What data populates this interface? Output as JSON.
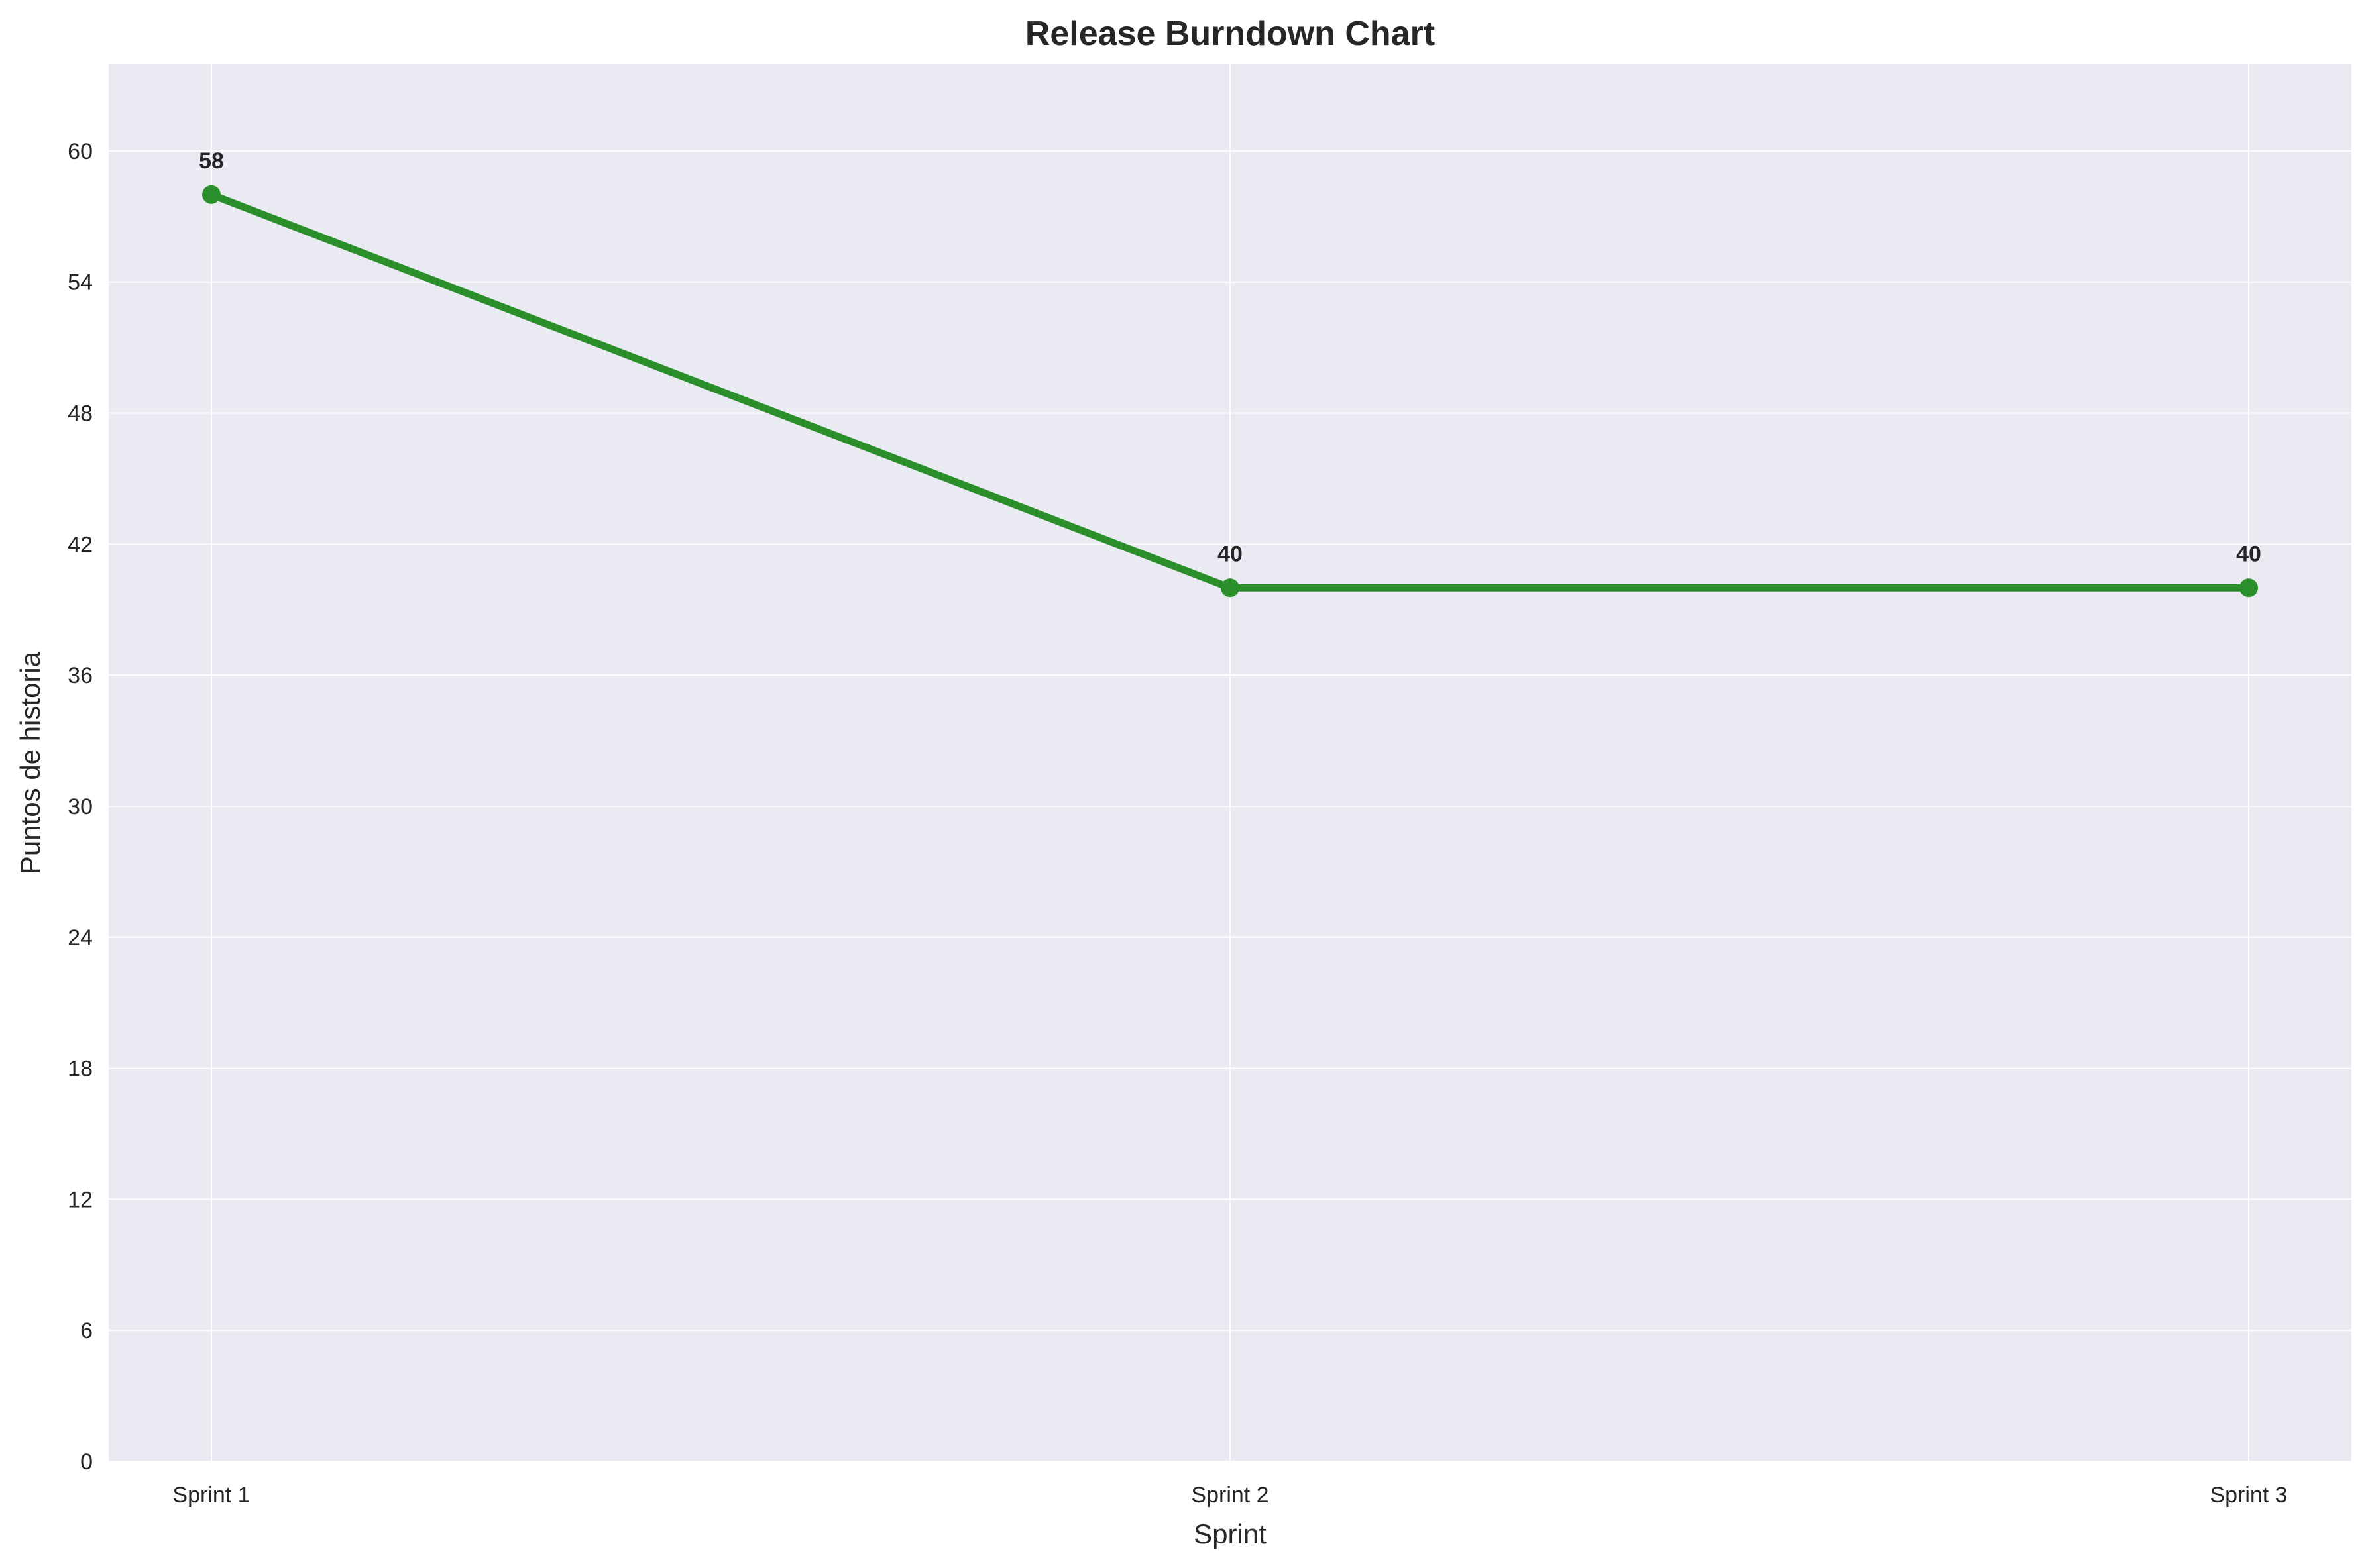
{
  "chart_data": {
    "type": "line",
    "title": "Release Burndown Chart",
    "xlabel": "Sprint",
    "ylabel": "Puntos de historia",
    "categories": [
      "Sprint 1",
      "Sprint 2",
      "Sprint 3"
    ],
    "series": [
      {
        "values": [
          58,
          40,
          40
        ],
        "color": "#2a8f2a"
      }
    ],
    "data_labels": [
      "58",
      "40",
      "40"
    ],
    "yticks": [
      0,
      6,
      12,
      18,
      24,
      30,
      36,
      42,
      48,
      54,
      60
    ],
    "ytick_labels": [
      "0",
      "6",
      "12",
      "18",
      "24",
      "30",
      "36",
      "42",
      "48",
      "54",
      "60"
    ],
    "ylim": [
      0,
      64
    ],
    "grid": true,
    "legend": "none",
    "colors": {
      "plot_background": "#eaeaf2",
      "grid": "#ffffff",
      "text": "#262626"
    }
  }
}
